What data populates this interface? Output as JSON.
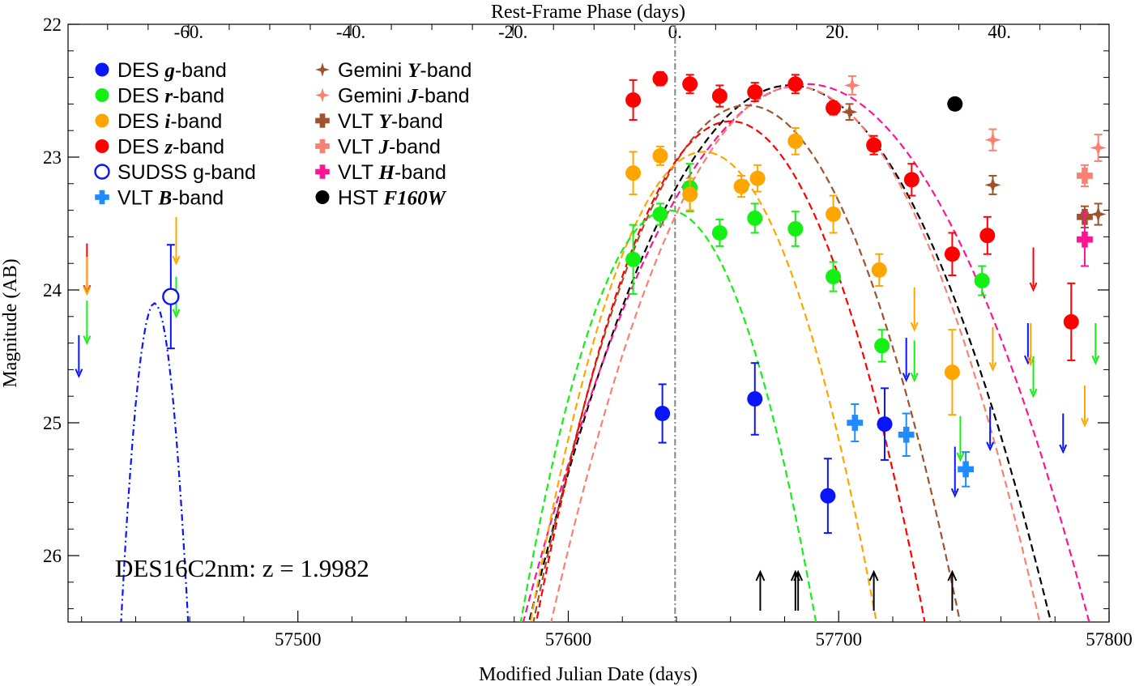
{
  "chart_data": {
    "type": "scatter",
    "xlabel": "Modified Julian Date (days)",
    "ylabel": "Magnitude (AB)",
    "top_xlabel": "Rest-Frame Phase (days)",
    "xlim": [
      57415,
      57800
    ],
    "ylim": [
      26.5,
      22.0
    ],
    "x_ticks": [
      57500,
      57600,
      57700,
      57800
    ],
    "y_ticks": [
      22,
      23,
      24,
      25,
      26
    ],
    "top_ticks": [
      -60,
      -40,
      -20,
      0,
      20,
      40
    ],
    "top_tick_labels": [
      "-60.",
      "-40.",
      "-20.",
      "0.",
      "20.",
      "40."
    ],
    "peak_mjd": 57639.5,
    "z": 1.9982,
    "annotation": "DES16C2nm: z = 1.9982",
    "legend_position": "top-left",
    "legend": [
      {
        "prefix": "DES ",
        "band": "g",
        "suffix": "-band",
        "bold": true,
        "color": "#0a14ff",
        "marker": "circle"
      },
      {
        "prefix": "DES ",
        "band": "r",
        "suffix": "-band",
        "bold": true,
        "color": "#14f014",
        "marker": "circle"
      },
      {
        "prefix": "DES ",
        "band": "i",
        "suffix": "-band",
        "bold": true,
        "color": "#ffa500",
        "marker": "circle"
      },
      {
        "prefix": "DES ",
        "band": "z",
        "suffix": "-band",
        "bold": true,
        "color": "#ff0000",
        "marker": "circle"
      },
      {
        "prefix": "SUDSS g-band",
        "band": "",
        "suffix": "",
        "bold": false,
        "color": "#0a14ff",
        "marker": "open-circle"
      },
      {
        "prefix": "VLT ",
        "band": "B",
        "suffix": "-band",
        "bold": true,
        "color": "#1e8cff",
        "marker": "plus"
      },
      {
        "prefix": "Gemini ",
        "band": "Y",
        "suffix": "-band",
        "bold": true,
        "color": "#a0522d",
        "marker": "star"
      },
      {
        "prefix": "Gemini ",
        "band": "J",
        "suffix": "-band",
        "bold": true,
        "color": "#fa8072",
        "marker": "star"
      },
      {
        "prefix": "VLT ",
        "band": "Y",
        "suffix": "-band",
        "bold": true,
        "color": "#a0522d",
        "marker": "plus"
      },
      {
        "prefix": "VLT ",
        "band": "J",
        "suffix": "-band",
        "bold": true,
        "color": "#fa8072",
        "marker": "plus"
      },
      {
        "prefix": "VLT ",
        "band": "H",
        "suffix": "-band",
        "bold": true,
        "color": "#ff1493",
        "marker": "plus"
      },
      {
        "prefix": "HST ",
        "band": "F160W",
        "suffix": "",
        "bold": true,
        "color": "#000000",
        "marker": "circle"
      }
    ],
    "series": [
      {
        "name": "DES g-band",
        "color": "#0a14ff",
        "marker": "circle",
        "points": [
          [
            57634.8,
            24.93,
            0.22
          ],
          [
            57669.0,
            24.82,
            0.27
          ],
          [
            57696.0,
            25.55,
            0.28
          ],
          [
            57717.0,
            25.01,
            0.27
          ]
        ]
      },
      {
        "name": "DES r-band",
        "color": "#14f014",
        "marker": "circle",
        "points": [
          [
            57624.0,
            23.77,
            0.26
          ],
          [
            57634.0,
            23.43,
            0.08
          ],
          [
            57645.0,
            23.23,
            0.18
          ],
          [
            57656.0,
            23.57,
            0.1
          ],
          [
            57669.0,
            23.46,
            0.11
          ],
          [
            57684.0,
            23.54,
            0.13
          ],
          [
            57698.0,
            23.9,
            0.11
          ],
          [
            57716.0,
            24.42,
            0.12
          ],
          [
            57753.0,
            23.93,
            0.11
          ]
        ]
      },
      {
        "name": "DES i-band",
        "color": "#ffa500",
        "marker": "circle",
        "points": [
          [
            57624.0,
            23.12,
            0.16
          ],
          [
            57634.0,
            22.99,
            0.07
          ],
          [
            57645.0,
            23.28,
            0.12
          ],
          [
            57664.0,
            23.22,
            0.08
          ],
          [
            57670.0,
            23.16,
            0.1
          ],
          [
            57684.0,
            22.88,
            0.1
          ],
          [
            57698.0,
            23.43,
            0.14
          ],
          [
            57715.0,
            23.85,
            0.12
          ],
          [
            57742.0,
            24.62,
            0.32
          ]
        ]
      },
      {
        "name": "DES z-band",
        "color": "#ff0000",
        "marker": "circle",
        "points": [
          [
            57624.0,
            22.57,
            0.15
          ],
          [
            57634.0,
            22.41,
            0.05
          ],
          [
            57645.0,
            22.45,
            0.07
          ],
          [
            57656.0,
            22.54,
            0.08
          ],
          [
            57669.0,
            22.51,
            0.07
          ],
          [
            57684.0,
            22.45,
            0.07
          ],
          [
            57698.0,
            22.63,
            0.05
          ],
          [
            57713.0,
            22.91,
            0.07
          ],
          [
            57727.0,
            23.17,
            0.12
          ],
          [
            57742.0,
            23.73,
            0.16
          ],
          [
            57755.0,
            23.59,
            0.14
          ],
          [
            57786.0,
            24.24,
            0.29
          ]
        ]
      },
      {
        "name": "SUDSS g-band",
        "color": "#0a14ff",
        "marker": "open-circle",
        "points": [
          [
            57453.0,
            24.05,
            0.39
          ]
        ]
      },
      {
        "name": "VLT B-band",
        "color": "#1e8cff",
        "marker": "plus",
        "points": [
          [
            57706.0,
            25.0,
            0.14
          ],
          [
            57725.0,
            25.09,
            0.16
          ],
          [
            57747.0,
            25.35,
            0.13
          ]
        ]
      },
      {
        "name": "Gemini Y-band",
        "color": "#a0522d",
        "marker": "star",
        "points": [
          [
            57704.0,
            22.66,
            0.06
          ],
          [
            57757.0,
            23.21,
            0.07
          ],
          [
            57796.0,
            23.43,
            0.08
          ]
        ]
      },
      {
        "name": "Gemini J-band",
        "color": "#fa8072",
        "marker": "star",
        "points": [
          [
            57705.0,
            22.46,
            0.07
          ],
          [
            57757.0,
            22.87,
            0.08
          ],
          [
            57796.0,
            22.93,
            0.1
          ]
        ]
      },
      {
        "name": "VLT Y-band",
        "color": "#a0522d",
        "marker": "plus",
        "points": [
          [
            57791.0,
            23.45,
            0.08
          ]
        ]
      },
      {
        "name": "VLT J-band",
        "color": "#fa8072",
        "marker": "plus",
        "points": [
          [
            57791.0,
            23.14,
            0.08
          ]
        ]
      },
      {
        "name": "VLT H-band",
        "color": "#ff1493",
        "marker": "plus",
        "points": [
          [
            57791.0,
            23.62,
            0.2
          ]
        ]
      },
      {
        "name": "HST F160W",
        "color": "#000000",
        "marker": "circle",
        "points": [
          [
            57743.0,
            22.6,
            0.02
          ]
        ]
      }
    ],
    "upper_limits": [
      {
        "color": "#ff0000",
        "x": 57422.0,
        "y_top": 23.65,
        "y_tip": 24.02
      },
      {
        "color": "#ffa500",
        "x": 57422.0,
        "y_top": 23.75,
        "y_tip": 24.03
      },
      {
        "color": "#14f014",
        "x": 57422.0,
        "y_top": 24.08,
        "y_tip": 24.4
      },
      {
        "color": "#0a14ff",
        "x": 57419.0,
        "y_top": 24.34,
        "y_tip": 24.65
      },
      {
        "color": "#ffa500",
        "x": 57455.0,
        "y_top": 23.45,
        "y_tip": 23.8
      },
      {
        "color": "#14f014",
        "x": 57455.0,
        "y_top": 23.9,
        "y_tip": 24.2
      },
      {
        "color": "#14f014",
        "x": 57728.0,
        "y_top": 24.38,
        "y_tip": 24.68
      },
      {
        "color": "#ffa500",
        "x": 57728.0,
        "y_top": 23.98,
        "y_tip": 24.3
      },
      {
        "color": "#0a14ff",
        "x": 57725.0,
        "y_top": 24.36,
        "y_tip": 24.68
      },
      {
        "color": "#14f014",
        "x": 57745.0,
        "y_top": 24.95,
        "y_tip": 25.28
      },
      {
        "color": "#0a14ff",
        "x": 57743.0,
        "y_top": 25.18,
        "y_tip": 25.55
      },
      {
        "color": "#0a14ff",
        "x": 57756.0,
        "y_top": 24.88,
        "y_tip": 25.2
      },
      {
        "color": "#ffa500",
        "x": 57757.0,
        "y_top": 24.28,
        "y_tip": 24.6
      },
      {
        "color": "#ff0000",
        "x": 57772.0,
        "y_top": 23.68,
        "y_tip": 24.0
      },
      {
        "color": "#0a14ff",
        "x": 57770.0,
        "y_top": 24.25,
        "y_tip": 24.55
      },
      {
        "color": "#ffa500",
        "x": 57771.0,
        "y_top": 24.25,
        "y_tip": 24.56
      },
      {
        "color": "#14f014",
        "x": 57772.0,
        "y_top": 24.5,
        "y_tip": 24.8
      },
      {
        "color": "#0a14ff",
        "x": 57783.0,
        "y_top": 24.93,
        "y_tip": 25.22
      },
      {
        "color": "#14f014",
        "x": 57795.0,
        "y_top": 24.25,
        "y_tip": 24.55
      },
      {
        "color": "#ffa500",
        "x": 57791.0,
        "y_top": 24.72,
        "y_tip": 25.02
      }
    ],
    "spectra_epochs": [
      57671,
      57684,
      57685,
      57713,
      57742
    ],
    "model_curves": [
      {
        "name": "HST F160W",
        "color": "#000000",
        "peak_x": 57682.0,
        "peak_y": 22.46,
        "width": 48.0
      },
      {
        "name": "VLT H-band",
        "color": "#ff1493",
        "peak_x": 57688.0,
        "peak_y": 22.45,
        "width": 52.0
      },
      {
        "name": "Gemini J-band",
        "color": "#fa8072",
        "peak_x": 57684.0,
        "peak_y": 22.47,
        "width": 45.0
      },
      {
        "name": "Gemini Y-band",
        "color": "#a0522d",
        "peak_x": 57666.0,
        "peak_y": 22.61,
        "width": 40.0
      },
      {
        "name": "DES z-band",
        "color": "#ff0000",
        "peak_x": 57660.0,
        "peak_y": 22.73,
        "width": 37.0
      },
      {
        "name": "DES i-band",
        "color": "#ffa500",
        "peak_x": 57650.0,
        "peak_y": 22.96,
        "width": 34.0
      },
      {
        "name": "DES r-band",
        "color": "#14f014",
        "peak_x": 57637.0,
        "peak_y": 23.4,
        "width": 31.0
      },
      {
        "name": "SUDSS g-band",
        "color": "#0a14ff",
        "peak_x": 57447.0,
        "peak_y": 24.1,
        "width": 8.0,
        "style": "dashdot"
      }
    ]
  }
}
